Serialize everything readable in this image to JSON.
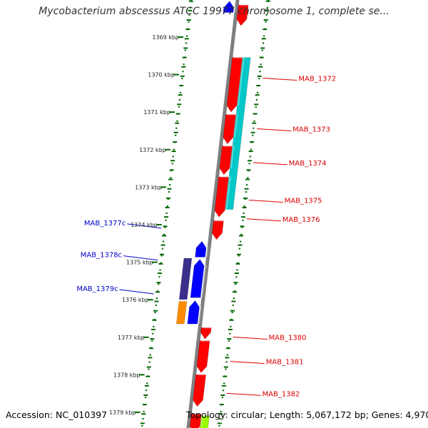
{
  "header": {
    "title": "Mycobacterium abscessus ATCC 19977 chromosome 1, complete se..."
  },
  "footer": {
    "accession": "Accession: NC_010397",
    "summary": "Topology: circular; Length: 5,067,172 bp; Genes: 4,970"
  },
  "map": {
    "scale_labels": [
      {
        "kbp": 1369,
        "label": "1369 kbp"
      },
      {
        "kbp": 1370,
        "label": "1370 kbp"
      },
      {
        "kbp": 1371,
        "label": "1371 kbp"
      },
      {
        "kbp": 1372,
        "label": "1372 kbp"
      },
      {
        "kbp": 1373,
        "label": "1373 kbp"
      },
      {
        "kbp": 1374,
        "label": "1374 kbp"
      },
      {
        "kbp": 1375,
        "label": "1375 kbp"
      },
      {
        "kbp": 1376,
        "label": "1376 kbp"
      },
      {
        "kbp": 1377,
        "label": "1377 kbp"
      },
      {
        "kbp": 1378,
        "label": "1378 kbp"
      },
      {
        "kbp": 1379,
        "label": "1379 kbp"
      }
    ],
    "colors": {
      "backbone": "#7f7f7f",
      "forward_cds": "#ff0000",
      "reverse_cds": "#0000ff",
      "cyan_feature": "#00c8c8",
      "purple_feature": "#3b2f8c",
      "orange_feature": "#ff8c00",
      "green_feature": "#9cff00",
      "forward_label": "#dd0000",
      "reverse_label": "#0000cc",
      "tick": "#006600"
    },
    "features": [
      {
        "name": "MAB_1372",
        "strand": "forward",
        "start_kbp": 1370.0,
        "end_kbp": 1371.45,
        "label_kbp": 1370.55,
        "color": "#ff0000",
        "labeled": true
      },
      {
        "name": "MAB_1373",
        "strand": "forward",
        "start_kbp": 1371.52,
        "end_kbp": 1372.3,
        "label_kbp": 1371.9,
        "color": "#ff0000",
        "labeled": true
      },
      {
        "name": "MAB_1374",
        "strand": "forward",
        "start_kbp": 1372.36,
        "end_kbp": 1373.12,
        "label_kbp": 1372.8,
        "color": "#ff0000",
        "labeled": true
      },
      {
        "name": "MAB_1375",
        "strand": "forward",
        "start_kbp": 1373.18,
        "end_kbp": 1374.25,
        "label_kbp": 1373.8,
        "color": "#ff0000",
        "labeled": true
      },
      {
        "name": "MAB_1376",
        "strand": "forward",
        "start_kbp": 1374.35,
        "end_kbp": 1374.85,
        "label_kbp": 1374.3,
        "color": "#ff0000",
        "labeled": true
      },
      {
        "name": "MAB_1377c",
        "strand": "reverse",
        "start_kbp": 1374.9,
        "end_kbp": 1375.32,
        "label_kbp": 1374.55,
        "color": "#0000ff",
        "labeled": true
      },
      {
        "name": "MAB_1378c",
        "strand": "reverse",
        "start_kbp": 1375.38,
        "end_kbp": 1376.4,
        "label_kbp": 1375.4,
        "color": "#0000ff",
        "labeled": true
      },
      {
        "name": "MAB_1379c",
        "strand": "reverse",
        "start_kbp": 1376.48,
        "end_kbp": 1377.1,
        "label_kbp": 1376.3,
        "color": "#0000ff",
        "labeled": true
      },
      {
        "name": "MAB_1380",
        "strand": "forward",
        "start_kbp": 1377.2,
        "end_kbp": 1377.5,
        "label_kbp": 1377.45,
        "color": "#ff0000",
        "labeled": true
      },
      {
        "name": "MAB_1381",
        "strand": "forward",
        "start_kbp": 1377.55,
        "end_kbp": 1378.4,
        "label_kbp": 1378.1,
        "color": "#ff0000",
        "labeled": true
      },
      {
        "name": "MAB_1382",
        "strand": "forward",
        "start_kbp": 1378.45,
        "end_kbp": 1379.3,
        "label_kbp": 1378.95,
        "color": "#ff0000",
        "labeled": true
      },
      {
        "name": "",
        "strand": "forward",
        "start_kbp": 1368.6,
        "end_kbp": 1369.15,
        "label_kbp": 1369.0,
        "color": "#ff0000",
        "labeled": false
      },
      {
        "name": "",
        "strand": "reverse",
        "start_kbp": 1368.5,
        "end_kbp": 1368.8,
        "label_kbp": 1368.6,
        "color": "#0000ff",
        "labeled": false
      },
      {
        "name": "",
        "strand": "forward",
        "start_kbp": 1379.5,
        "end_kbp": 1380.0,
        "label_kbp": 1379.7,
        "color": "#ff0000",
        "labeled": false
      }
    ],
    "secondary_features": [
      {
        "track": "forward_outer",
        "start_kbp": 1370.0,
        "end_kbp": 1374.05,
        "color": "#00c8c8"
      },
      {
        "track": "reverse_outer",
        "start_kbp": 1375.35,
        "end_kbp": 1376.45,
        "color": "#3b2f8c"
      },
      {
        "track": "reverse_outer",
        "start_kbp": 1376.5,
        "end_kbp": 1377.1,
        "color": "#ff8c00"
      },
      {
        "track": "forward_outer",
        "start_kbp": 1379.55,
        "end_kbp": 1380.0,
        "color": "#9cff00"
      }
    ]
  }
}
